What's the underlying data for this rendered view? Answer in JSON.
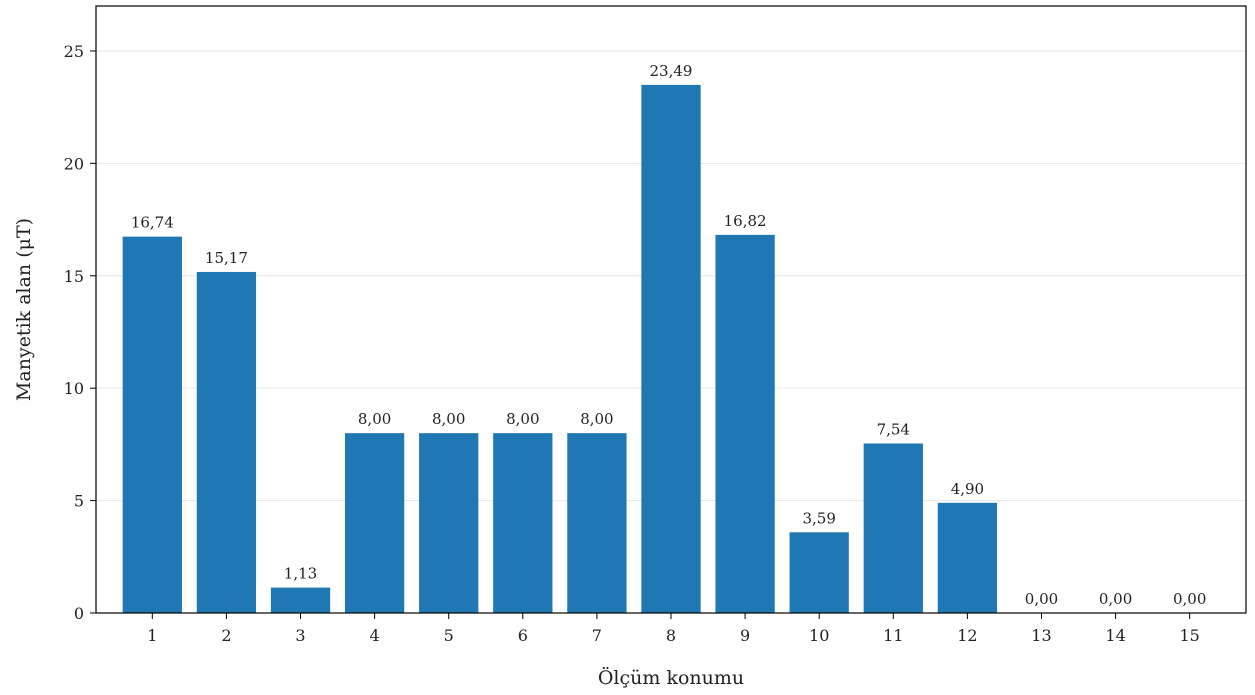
{
  "chart_data": {
    "type": "bar",
    "categories": [
      "1",
      "2",
      "3",
      "4",
      "5",
      "6",
      "7",
      "8",
      "9",
      "10",
      "11",
      "12",
      "13",
      "14",
      "15"
    ],
    "values": [
      16.74,
      15.17,
      1.13,
      8.0,
      8.0,
      8.0,
      8.0,
      23.49,
      16.82,
      3.59,
      7.54,
      4.9,
      0.0,
      0.0,
      0.0
    ],
    "value_labels": [
      "16,74",
      "15,17",
      "1,13",
      "8,00",
      "8,00",
      "8,00",
      "8,00",
      "23,49",
      "16,82",
      "3,59",
      "7,54",
      "4,90",
      "0,00",
      "0,00",
      "0,00"
    ],
    "title": "",
    "xlabel": "Ölçüm konumu",
    "ylabel": "Manyetik alan (μT)",
    "ylim": [
      0,
      27
    ],
    "yticks": [
      0,
      5,
      10,
      15,
      20,
      25
    ],
    "ytick_labels": [
      "0",
      "5",
      "10",
      "15",
      "20",
      "25"
    ],
    "grid": "horizontal",
    "legend": "none",
    "colors": {
      "bar": "#1f77b4",
      "grid": "#e6e6e6",
      "axis": "#000000"
    }
  }
}
